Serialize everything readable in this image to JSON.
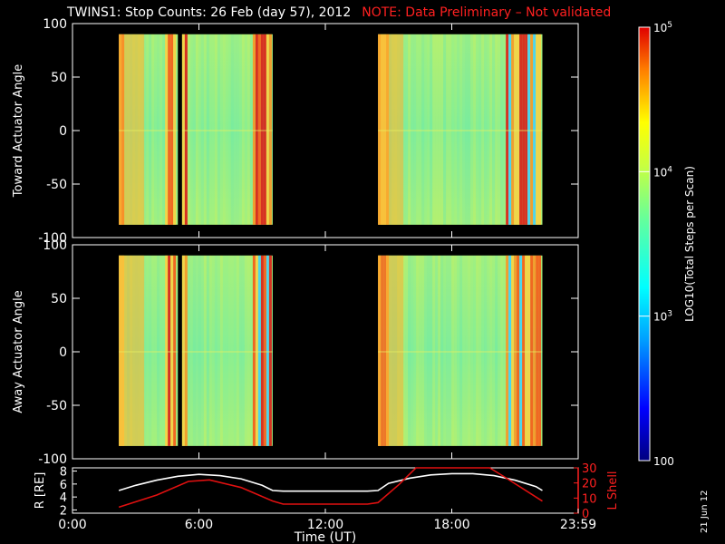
{
  "title": {
    "main": "TWINS1: Stop Counts: 26 Feb (day  57), 2012",
    "note": "NOTE: Data Preliminary – Not validated"
  },
  "side_date": "21 Jun 12",
  "colors": {
    "frame": "#ffffff",
    "note": "#ff2020",
    "rline": "#ffffff",
    "lline": "#e01010"
  },
  "chart_data": [
    {
      "type": "heatmap",
      "panel": "top",
      "ylabel": "Toward Actuator Angle",
      "ylim": [
        -100,
        100
      ],
      "xlim": [
        0,
        24
      ],
      "yticks": [
        "100",
        "50",
        "0",
        "-50",
        "-100"
      ],
      "data_blocks_hours": [
        [
          2.2,
          5.0
        ],
        [
          5.2,
          9.5
        ],
        [
          14.5,
          22.3
        ]
      ],
      "angle_range": [
        -88,
        90
      ]
    },
    {
      "type": "heatmap",
      "panel": "middle",
      "ylabel": "Away Actuator Angle",
      "ylim": [
        -100,
        100
      ],
      "xlim": [
        0,
        24
      ],
      "yticks": [
        "100",
        "50",
        "0",
        "-50",
        "-100"
      ],
      "data_blocks_hours": [
        [
          2.2,
          5.0
        ],
        [
          5.2,
          9.5
        ],
        [
          14.5,
          22.3
        ]
      ],
      "angle_range": [
        -88,
        90
      ]
    },
    {
      "type": "colorbar",
      "label": "LOG10(Total Steps per Scan)",
      "ticks": [
        "10^5",
        "10^4",
        "10^3",
        "100"
      ],
      "range": [
        100,
        100000
      ],
      "scale": "log"
    },
    {
      "type": "line",
      "panel": "bottom",
      "xlabel": "Time (UT)",
      "xticks": [
        "0:00",
        "6:00",
        "12:00",
        "18:00",
        "23:59"
      ],
      "left_axis": {
        "label": "R [RE]",
        "ticks": [
          "8",
          "6",
          "4",
          "2"
        ],
        "ylim": [
          1.5,
          8.5
        ]
      },
      "right_axis": {
        "label": "L Shell",
        "ticks": [
          "30",
          "20",
          "10",
          "0"
        ],
        "ylim": [
          0,
          30
        ]
      },
      "series": [
        {
          "name": "R",
          "axis": "left",
          "x": [
            2.2,
            3,
            4,
            5,
            6,
            7,
            8,
            9,
            9.5,
            10,
            11,
            12,
            13,
            14,
            14.5,
            15,
            16,
            17,
            18,
            19,
            20,
            21,
            22,
            22.3
          ],
          "y": [
            5.0,
            5.8,
            6.6,
            7.2,
            7.5,
            7.3,
            6.8,
            5.8,
            5.0,
            4.9,
            4.9,
            4.9,
            4.9,
            4.9,
            5.0,
            6.1,
            6.9,
            7.4,
            7.6,
            7.6,
            7.3,
            6.6,
            5.6,
            5.0
          ]
        },
        {
          "name": "L Shell",
          "axis": "right",
          "x": [
            2.2,
            4,
            5.5,
            6.5,
            8,
            9.5,
            10,
            12,
            14,
            14.5,
            15.5,
            16.3,
            19.8,
            20.5,
            22.3
          ],
          "y": [
            4,
            12,
            21,
            22,
            17,
            8,
            6,
            6,
            6,
            7,
            19,
            30,
            30,
            24,
            8
          ]
        }
      ]
    }
  ]
}
